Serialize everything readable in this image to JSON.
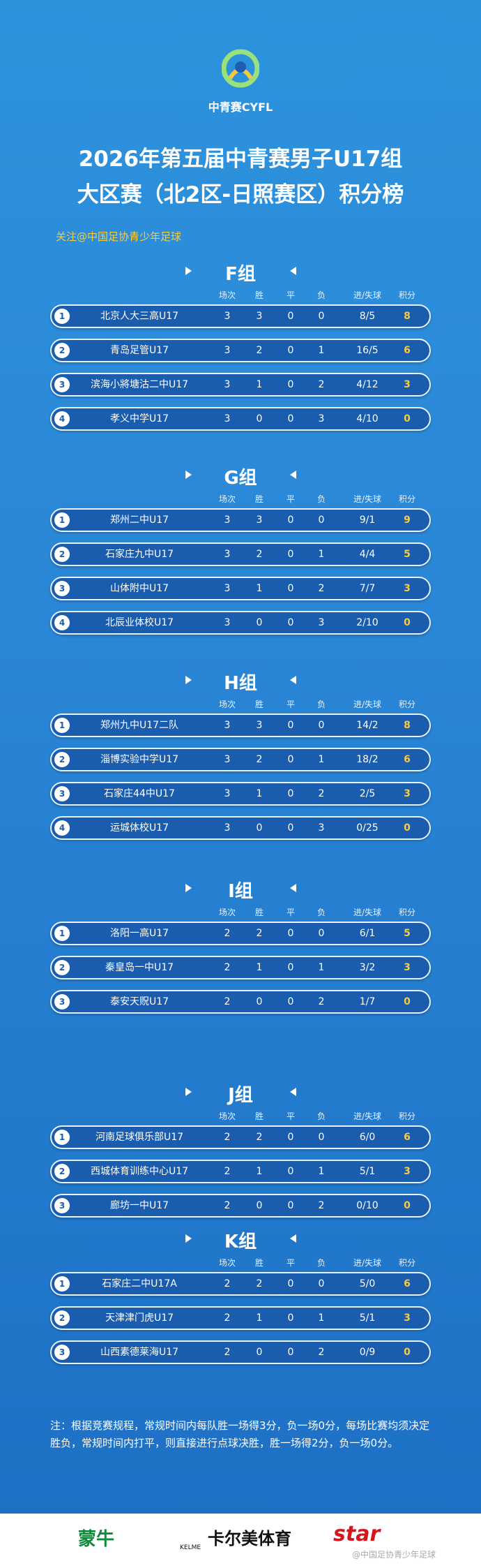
{
  "header": {
    "logo": "中青赛CYFL",
    "title_line1": "2026年第五届中青赛男子U17组",
    "title_line2": "大区赛（北2区-日照赛区）积分榜",
    "follow": "关注@中国足协青少年足球"
  },
  "columns": [
    "场次",
    "胜",
    "平",
    "负",
    "进/失球",
    "积分"
  ],
  "groups": [
    {
      "name": "F组",
      "rows": [
        [
          "1",
          "北京人大三高U17",
          "3",
          "3",
          "0",
          "0",
          "8/5",
          "8"
        ],
        [
          "2",
          "青岛足管U17",
          "3",
          "2",
          "0",
          "1",
          "16/5",
          "6"
        ],
        [
          "3",
          "滨海小將塘沽二中U17",
          "3",
          "1",
          "0",
          "2",
          "4/12",
          "3"
        ],
        [
          "4",
          "孝义中学U17",
          "3",
          "0",
          "0",
          "3",
          "4/10",
          "0"
        ]
      ]
    },
    {
      "name": "G组",
      "rows": [
        [
          "1",
          "郑州二中U17",
          "3",
          "3",
          "0",
          "0",
          "9/1",
          "9"
        ],
        [
          "2",
          "石家庄九中U17",
          "3",
          "2",
          "0",
          "1",
          "4/4",
          "5"
        ],
        [
          "3",
          "山体附中U17",
          "3",
          "1",
          "0",
          "2",
          "7/7",
          "3"
        ],
        [
          "4",
          "北辰业体校U17",
          "3",
          "0",
          "0",
          "3",
          "2/10",
          "0"
        ]
      ]
    },
    {
      "name": "H组",
      "rows": [
        [
          "1",
          "郑州九中U17二队",
          "3",
          "3",
          "0",
          "0",
          "14/2",
          "8"
        ],
        [
          "2",
          "淄博实验中学U17",
          "3",
          "2",
          "0",
          "1",
          "18/2",
          "6"
        ],
        [
          "3",
          "石家庄44中U17",
          "3",
          "1",
          "0",
          "2",
          "2/5",
          "3"
        ],
        [
          "4",
          "运城体校U17",
          "3",
          "0",
          "0",
          "3",
          "0/25",
          "0"
        ]
      ]
    },
    {
      "name": "I组",
      "rows": [
        [
          "1",
          "洛阳一高U17",
          "2",
          "2",
          "0",
          "0",
          "6/1",
          "5"
        ],
        [
          "2",
          "秦皇岛一中U17",
          "2",
          "1",
          "0",
          "1",
          "3/2",
          "3"
        ],
        [
          "3",
          "泰安天贶U17",
          "2",
          "0",
          "0",
          "2",
          "1/7",
          "0"
        ]
      ]
    },
    {
      "name": "J组",
      "rows": [
        [
          "1",
          "河南足球俱乐部U17",
          "2",
          "2",
          "0",
          "0",
          "6/0",
          "6"
        ],
        [
          "2",
          "西城体育训练中心U17",
          "2",
          "1",
          "0",
          "1",
          "5/1",
          "3"
        ],
        [
          "3",
          "廊坊一中U17",
          "2",
          "0",
          "0",
          "2",
          "0/10",
          "0"
        ]
      ]
    },
    {
      "name": "K组",
      "rows": [
        [
          "1",
          "石家庄二中U17A",
          "2",
          "2",
          "0",
          "0",
          "5/0",
          "6"
        ],
        [
          "2",
          "天津津门虎U17",
          "2",
          "1",
          "0",
          "1",
          "5/1",
          "3"
        ],
        [
          "3",
          "山西素德莱海U17",
          "2",
          "0",
          "0",
          "2",
          "0/9",
          "0"
        ]
      ]
    }
  ],
  "note": "注：根据竞赛规程，常规时间内每队胜一场得3分，负一场0分，每场比赛均须决定胜负，常规时间内打平，则直接进行点球决胜，胜一场得2分，负一场0分。",
  "sponsors": {
    "mengniu": "蒙牛",
    "kelme_mark": "KELME",
    "kelme": "卡尔美体育",
    "star": "star",
    "watermark": "@中国足协青少年足球"
  }
}
